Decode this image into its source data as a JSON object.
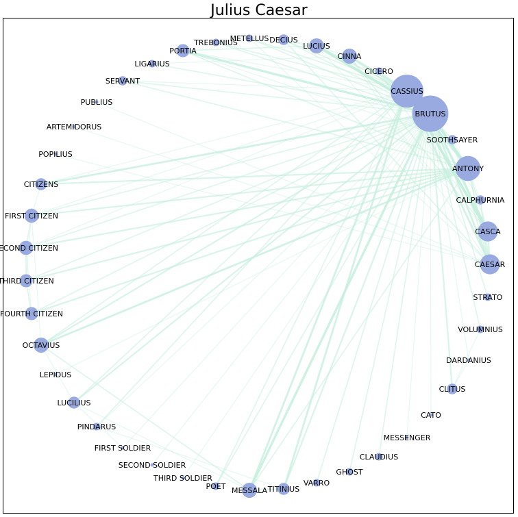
{
  "title": "Julius Caesar",
  "colors": {
    "node": "#98aae0",
    "edge": "#c4eedd",
    "frame": "#000000",
    "background": "#ffffff"
  },
  "nodes": [
    {
      "name": "CASSIUS",
      "degree": 38
    },
    {
      "name": "BRUTUS",
      "degree": 46
    },
    {
      "name": "SOOTHSAYER",
      "degree": 3
    },
    {
      "name": "ANTONY",
      "degree": 22
    },
    {
      "name": "CALPHURNIA",
      "degree": 3
    },
    {
      "name": "CASCA",
      "degree": 14
    },
    {
      "name": "CAESAR",
      "degree": 14
    },
    {
      "name": "STRATO",
      "degree": 2
    },
    {
      "name": "VOLUMNIUS",
      "degree": 2
    },
    {
      "name": "DARDANIUS",
      "degree": 1
    },
    {
      "name": "CLITUS",
      "degree": 4
    },
    {
      "name": "CATO",
      "degree": 1
    },
    {
      "name": "MESSENGER",
      "degree": 1
    },
    {
      "name": "CLAUDIUS",
      "degree": 2
    },
    {
      "name": "GHOST",
      "degree": 2
    },
    {
      "name": "VARRO",
      "degree": 2
    },
    {
      "name": "TITINIUS",
      "degree": 5
    },
    {
      "name": "MESSALA",
      "degree": 8
    },
    {
      "name": "POET",
      "degree": 2
    },
    {
      "name": "THIRD SOLDIER",
      "degree": 1
    },
    {
      "name": "SECOND SOLDIER",
      "degree": 1
    },
    {
      "name": "FIRST SOLDIER",
      "degree": 1
    },
    {
      "name": "PINDARUS",
      "degree": 2
    },
    {
      "name": "LUCILIUS",
      "degree": 5
    },
    {
      "name": "LEPIDUS",
      "degree": 1
    },
    {
      "name": "OCTAVIUS",
      "degree": 8
    },
    {
      "name": "FOURTH CITIZEN",
      "degree": 6
    },
    {
      "name": "THIRD CITIZEN",
      "degree": 6
    },
    {
      "name": "SECOND CITIZEN",
      "degree": 7
    },
    {
      "name": "FIRST CITIZEN",
      "degree": 7
    },
    {
      "name": "CITIZENS",
      "degree": 5
    },
    {
      "name": "POPILIUS",
      "degree": 1
    },
    {
      "name": "ARTEMIDORUS",
      "degree": 1
    },
    {
      "name": "PUBLIUS",
      "degree": 1
    },
    {
      "name": "SERVANT",
      "degree": 3
    },
    {
      "name": "LIGARIUS",
      "degree": 2
    },
    {
      "name": "PORTIA",
      "degree": 6
    },
    {
      "name": "TREBONIUS",
      "degree": 2
    },
    {
      "name": "METELLUS",
      "degree": 2
    },
    {
      "name": "DECIUS",
      "degree": 4
    },
    {
      "name": "LUCIUS",
      "degree": 8
    },
    {
      "name": "CINNA",
      "degree": 8
    },
    {
      "name": "CICERO",
      "degree": 2
    }
  ],
  "edges": [
    [
      "CASSIUS",
      "BRUTUS",
      10
    ],
    [
      "CASSIUS",
      "ANTONY",
      4
    ],
    [
      "CASSIUS",
      "CASCA",
      6
    ],
    [
      "CASSIUS",
      "CAESAR",
      4
    ],
    [
      "CASSIUS",
      "CINNA",
      4
    ],
    [
      "CASSIUS",
      "LUCIUS",
      3
    ],
    [
      "CASSIUS",
      "DECIUS",
      2
    ],
    [
      "CASSIUS",
      "METELLUS",
      2
    ],
    [
      "CASSIUS",
      "TREBONIUS",
      2
    ],
    [
      "CASSIUS",
      "PORTIA",
      1
    ],
    [
      "CASSIUS",
      "TITINIUS",
      4
    ],
    [
      "CASSIUS",
      "MESSALA",
      4
    ],
    [
      "CASSIUS",
      "OCTAVIUS",
      2
    ],
    [
      "CASSIUS",
      "PINDARUS",
      2
    ],
    [
      "CASSIUS",
      "LUCILIUS",
      2
    ],
    [
      "CASSIUS",
      "CICERO",
      2
    ],
    [
      "CASSIUS",
      "CITIZENS",
      1
    ],
    [
      "CASSIUS",
      "SERVANT",
      1
    ],
    [
      "CASSIUS",
      "SOOTHSAYER",
      1
    ],
    [
      "CASSIUS",
      "POET",
      2
    ],
    [
      "CASSIUS",
      "FIRST CITIZEN",
      1
    ],
    [
      "CASSIUS",
      "SECOND CITIZEN",
      1
    ],
    [
      "CASSIUS",
      "CALPHURNIA",
      1
    ],
    [
      "BRUTUS",
      "ANTONY",
      6
    ],
    [
      "BRUTUS",
      "CASCA",
      5
    ],
    [
      "BRUTUS",
      "CAESAR",
      4
    ],
    [
      "BRUTUS",
      "LUCIUS",
      6
    ],
    [
      "BRUTUS",
      "PORTIA",
      5
    ],
    [
      "BRUTUS",
      "CINNA",
      3
    ],
    [
      "BRUTUS",
      "DECIUS",
      2
    ],
    [
      "BRUTUS",
      "METELLUS",
      2
    ],
    [
      "BRUTUS",
      "TREBONIUS",
      2
    ],
    [
      "BRUTUS",
      "LIGARIUS",
      2
    ],
    [
      "BRUTUS",
      "SERVANT",
      2
    ],
    [
      "BRUTUS",
      "CITIZENS",
      4
    ],
    [
      "BRUTUS",
      "FIRST CITIZEN",
      2
    ],
    [
      "BRUTUS",
      "SECOND CITIZEN",
      2
    ],
    [
      "BRUTUS",
      "THIRD CITIZEN",
      2
    ],
    [
      "BRUTUS",
      "FOURTH CITIZEN",
      2
    ],
    [
      "BRUTUS",
      "OCTAVIUS",
      3
    ],
    [
      "BRUTUS",
      "LUCILIUS",
      3
    ],
    [
      "BRUTUS",
      "MESSALA",
      5
    ],
    [
      "BRUTUS",
      "TITINIUS",
      3
    ],
    [
      "BRUTUS",
      "VARRO",
      2
    ],
    [
      "BRUTUS",
      "CLAUDIUS",
      2
    ],
    [
      "BRUTUS",
      "GHOST",
      2
    ],
    [
      "BRUTUS",
      "CLITUS",
      3
    ],
    [
      "BRUTUS",
      "DARDANIUS",
      1
    ],
    [
      "BRUTUS",
      "VOLUMNIUS",
      2
    ],
    [
      "BRUTUS",
      "STRATO",
      2
    ],
    [
      "BRUTUS",
      "POET",
      2
    ],
    [
      "BRUTUS",
      "PINDARUS",
      1
    ],
    [
      "BRUTUS",
      "CATO",
      1
    ],
    [
      "BRUTUS",
      "MESSENGER",
      1
    ],
    [
      "BRUTUS",
      "FIRST SOLDIER",
      1
    ],
    [
      "BRUTUS",
      "SECOND SOLDIER",
      1
    ],
    [
      "BRUTUS",
      "THIRD SOLDIER",
      1
    ],
    [
      "BRUTUS",
      "SOOTHSAYER",
      1
    ],
    [
      "BRUTUS",
      "CICERO",
      1
    ],
    [
      "ANTONY",
      "CITIZENS",
      3
    ],
    [
      "ANTONY",
      "FIRST CITIZEN",
      3
    ],
    [
      "ANTONY",
      "SECOND CITIZEN",
      3
    ],
    [
      "ANTONY",
      "THIRD CITIZEN",
      3
    ],
    [
      "ANTONY",
      "FOURTH CITIZEN",
      3
    ],
    [
      "ANTONY",
      "OCTAVIUS",
      4
    ],
    [
      "ANTONY",
      "LEPIDUS",
      1
    ],
    [
      "ANTONY",
      "CAESAR",
      3
    ],
    [
      "ANTONY",
      "SERVANT",
      2
    ],
    [
      "ANTONY",
      "MESSALA",
      2
    ],
    [
      "ANTONY",
      "PORTIA",
      2
    ],
    [
      "ANTONY",
      "CASCA",
      2
    ],
    [
      "ANTONY",
      "SOOTHSAYER",
      1
    ],
    [
      "ANTONY",
      "CALPHURNIA",
      1
    ],
    [
      "CAESAR",
      "CALPHURNIA",
      2
    ],
    [
      "CAESAR",
      "CASCA",
      3
    ],
    [
      "CAESAR",
      "DECIUS",
      2
    ],
    [
      "CAESAR",
      "SOOTHSAYER",
      2
    ],
    [
      "CAESAR",
      "ARTEMIDORUS",
      1
    ],
    [
      "CAESAR",
      "PUBLIUS",
      1
    ],
    [
      "CAESAR",
      "POPILIUS",
      1
    ],
    [
      "CAESAR",
      "METELLUS",
      1
    ],
    [
      "CAESAR",
      "CINNA",
      1
    ],
    [
      "CASCA",
      "CINNA",
      2
    ],
    [
      "CASCA",
      "CICERO",
      1
    ],
    [
      "CASCA",
      "LUCIUS",
      1
    ],
    [
      "OCTAVIUS",
      "MESSALA",
      2
    ],
    [
      "OCTAVIUS",
      "LUCILIUS",
      1
    ],
    [
      "OCTAVIUS",
      "FIRST CITIZEN",
      1
    ],
    [
      "FIRST CITIZEN",
      "SECOND CITIZEN",
      2
    ],
    [
      "SECOND CITIZEN",
      "THIRD CITIZEN",
      2
    ],
    [
      "THIRD CITIZEN",
      "FOURTH CITIZEN",
      2
    ],
    [
      "FIRST CITIZEN",
      "THIRD CITIZEN",
      1
    ],
    [
      "CITIZENS",
      "FIRST CITIZEN",
      1
    ],
    [
      "SECOND CITIZEN",
      "FOURTH CITIZEN",
      1
    ],
    [
      "TITINIUS",
      "MESSALA",
      2
    ],
    [
      "LUCIUS",
      "PORTIA",
      2
    ],
    [
      "LUCIUS",
      "CINNA",
      1
    ],
    [
      "LUCIUS",
      "DECIUS",
      1
    ],
    [
      "PORTIA",
      "SOOTHSAYER",
      1
    ],
    [
      "MESSALA",
      "LUCILIUS",
      1
    ],
    [
      "TITINIUS",
      "PINDARUS",
      1
    ],
    [
      "CLITUS",
      "DARDANIUS",
      1
    ],
    [
      "CLITUS",
      "VOLUMNIUS",
      1
    ],
    [
      "LUCILIUS",
      "FIRST SOLDIER",
      1
    ],
    [
      "METELLUS",
      "TREBONIUS",
      1
    ],
    [
      "DECIUS",
      "CINNA",
      1
    ],
    [
      "CINNA",
      "LIGARIUS",
      1
    ]
  ]
}
